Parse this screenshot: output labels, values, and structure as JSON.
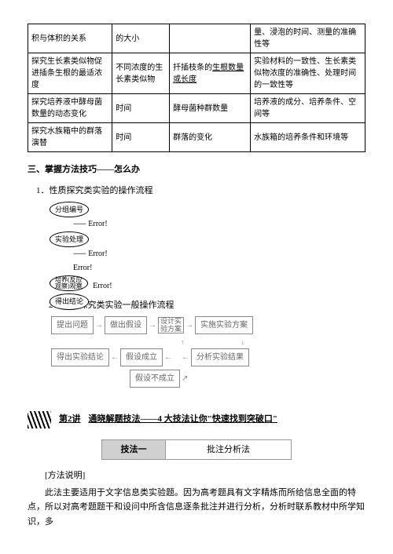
{
  "table": {
    "rows": [
      [
        "积与体积的关系",
        "的大小",
        "",
        "量、浸泡的时间、测量的准确性等"
      ],
      [
        "探究生长素类似物促进插条生根的最适浓度",
        "不同浓度的生长素类似物",
        "扦插枝条的<u>生根数量或长度</u>",
        "实验材料的一致性、生长素类似物浓度的准确性、处理时间的一致性等"
      ],
      [
        "探究培养液中酵母菌数量的动态变化",
        "时间",
        "酵母菌种群数量",
        "培养液的成分、培养条件、空间等"
      ],
      [
        "探究水族箱中的群落演替",
        "时间",
        "群落的变化",
        "水族箱的培养条件和环境等"
      ]
    ],
    "col_widths": [
      "25%",
      "17%",
      "24%",
      "34%"
    ]
  },
  "section3": "三、掌握方法技巧——怎么办",
  "sub1": "1．性质探究类实验的操作流程",
  "ovals": [
    "分组编号",
    "实验处理",
    "培养(反应观察)观察",
    "得出结论"
  ],
  "err": "Error!",
  "sub2": "2．功能探究类实验一般操作流程",
  "flow": {
    "r1": [
      "提出问题",
      "做出假设",
      "设计实验方案",
      "实施实验方案"
    ],
    "r2": [
      "得出实验结论",
      "假设成立",
      "分析实验结果"
    ],
    "r2b": "假设不成立"
  },
  "lecture": {
    "num": "第2讲",
    "title": "通晓解题技法——4 大技法让你\"快速找到突破口\""
  },
  "method": {
    "label": "技法一",
    "name": "批注分析法"
  },
  "explain_title": "[方法说明]",
  "para": "此法主要适用于文字信息类实验题。因为高考题具有文字精炼而所给信息全面的特点，所以对高考题题干和设问中所含信息逐条批注并进行分析，分析时联系教材中所学知识，多"
}
